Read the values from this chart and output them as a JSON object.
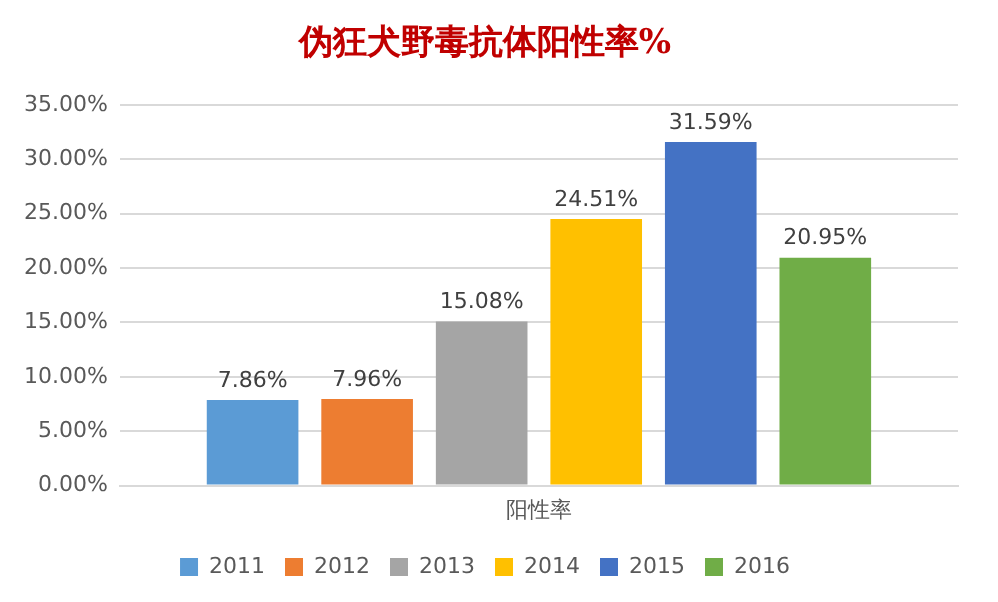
{
  "chart_data": {
    "type": "bar",
    "title": "伪狂犬野毒抗体阳性率%",
    "categories": [
      "阳性率"
    ],
    "series": [
      {
        "name": "2011",
        "color": "#5b9bd5",
        "values": [
          7.86
        ],
        "value_labels": [
          "7.86%"
        ]
      },
      {
        "name": "2012",
        "color": "#ed7d31",
        "values": [
          7.96
        ],
        "value_labels": [
          "7.96%"
        ]
      },
      {
        "name": "2013",
        "color": "#a5a5a5",
        "values": [
          15.08
        ],
        "value_labels": [
          "15.08%"
        ]
      },
      {
        "name": "2014",
        "color": "#ffc000",
        "values": [
          24.51
        ],
        "value_labels": [
          "24.51%"
        ]
      },
      {
        "name": "2015",
        "color": "#4472c4",
        "values": [
          31.59
        ],
        "value_labels": [
          "31.59%"
        ]
      },
      {
        "name": "2016",
        "color": "#70ad47",
        "values": [
          20.95
        ],
        "value_labels": [
          "20.95%"
        ]
      }
    ],
    "ylim": [
      0,
      35
    ],
    "yticks": [
      {
        "value": 0,
        "label": "0.00%"
      },
      {
        "value": 5,
        "label": "5.00%"
      },
      {
        "value": 10,
        "label": "10.00%"
      },
      {
        "value": 15,
        "label": "15.00%"
      },
      {
        "value": 20,
        "label": "20.00%"
      },
      {
        "value": 25,
        "label": "25.00%"
      },
      {
        "value": 30,
        "label": "30.00%"
      },
      {
        "value": 35,
        "label": "35.00%"
      }
    ],
    "grid": "y",
    "legend": "bottom"
  }
}
